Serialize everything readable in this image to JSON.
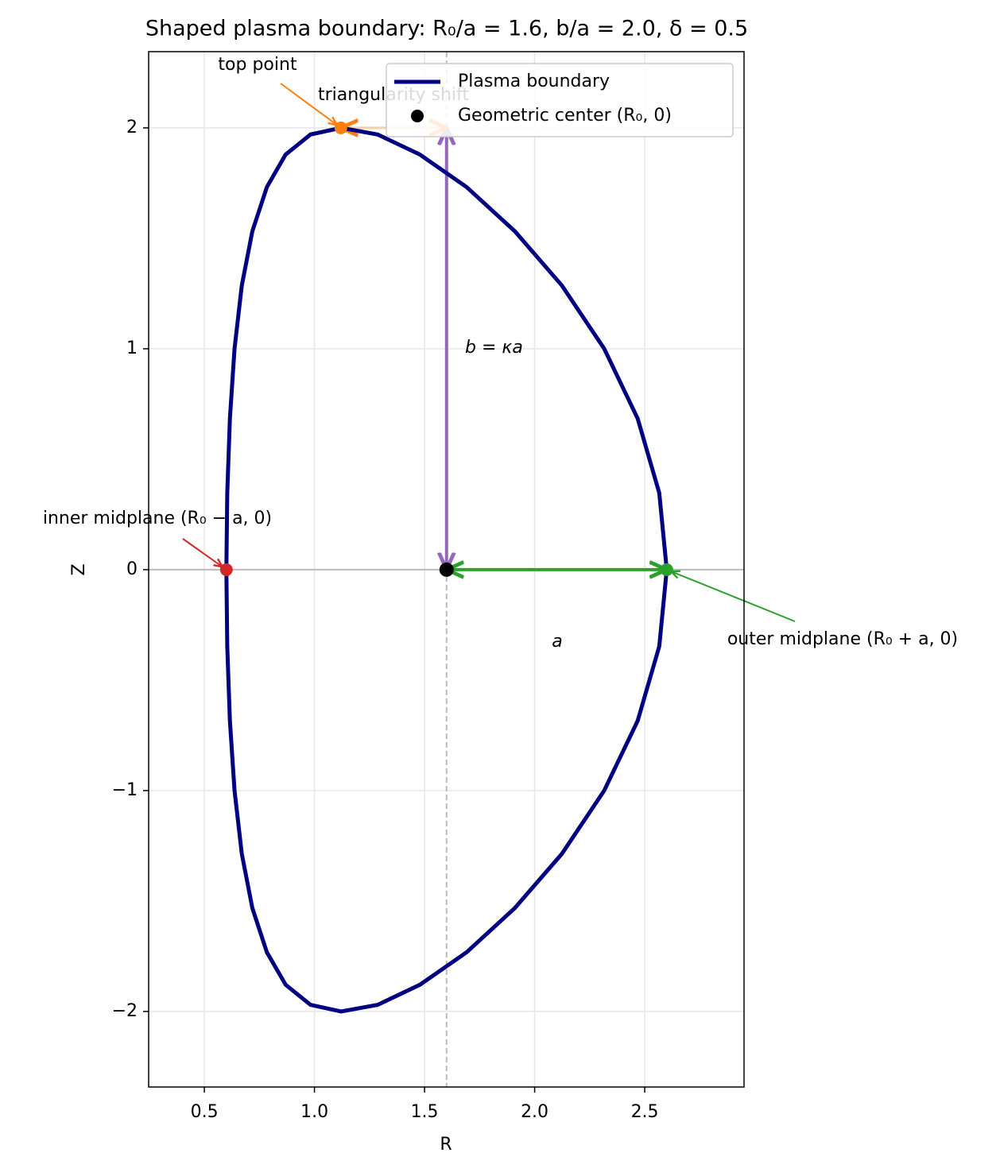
{
  "chart_data": {
    "type": "line",
    "title": "Shaped plasma boundary: R₀/a = 1.6, b/a = 2.0, δ = 0.5",
    "xlabel": "R",
    "ylabel": "Z",
    "xlim": [
      0.247,
      2.951
    ],
    "ylim": [
      -2.342,
      2.345
    ],
    "xticks": [
      0.5,
      {
        "value": 1.0,
        "label": "1.0"
      },
      1.5,
      {
        "value": 2.0,
        "label": "2.0"
      },
      2.5
    ],
    "yticks": [
      {
        "value": -2,
        "label": "−2"
      },
      {
        "value": -1,
        "label": "−1"
      },
      0,
      1,
      2
    ],
    "grid": true,
    "legend": "upper right",
    "series": [
      {
        "name": "Plasma boundary",
        "type": "line",
        "color": "#000080",
        "x": [
          2.6,
          2.566,
          2.468,
          2.316,
          2.124,
          1.91,
          1.691,
          1.479,
          1.287,
          1.121,
          0.982,
          0.869,
          0.784,
          0.718,
          0.67,
          0.637,
          0.616,
          0.604,
          0.6,
          0.604,
          0.616,
          0.637,
          0.67,
          0.718,
          0.784,
          0.869,
          0.982,
          1.121,
          1.287,
          1.479,
          1.691,
          1.91,
          2.124,
          2.316,
          2.468,
          2.566,
          2.6
        ],
        "y": [
          0,
          0.347,
          0.684,
          1.0,
          1.286,
          1.532,
          1.732,
          1.879,
          1.97,
          2.0,
          1.97,
          1.879,
          1.732,
          1.532,
          1.286,
          1.0,
          0.684,
          0.347,
          0,
          -0.347,
          -0.684,
          -1.0,
          -1.286,
          -1.532,
          -1.732,
          -1.879,
          -1.97,
          -2.0,
          -1.97,
          -1.879,
          -1.732,
          -1.532,
          -1.286,
          -1.0,
          -0.684,
          -0.347,
          0
        ]
      },
      {
        "name": "Geometric center (R₀, 0)",
        "type": "scatter",
        "color": "#000000",
        "x": [
          1.6
        ],
        "y": [
          0
        ]
      }
    ],
    "points": [
      {
        "text": "inner midplane (R₀ − a, 0)",
        "color": "#d62728",
        "x": 0.6,
        "y": 0
      },
      {
        "text": "outer midplane (R₀ + a, 0)",
        "color": "#2ca02c",
        "x": 2.6,
        "y": 0
      },
      {
        "text": "top point",
        "color": "#ff7f0e",
        "x": 1.12,
        "y": 2
      }
    ],
    "arrows": [
      {
        "text": "a",
        "color": "#2ca02c",
        "x": [
          1.6,
          2.6
        ],
        "y": [
          0,
          0
        ]
      },
      {
        "text": "b = κa",
        "color": "#9467bd",
        "x": [
          1.6,
          1.6
        ],
        "y": [
          0,
          2
        ]
      },
      {
        "text": "triangularity shift",
        "color": "#ff7f0e",
        "x": [
          1.12,
          1.6
        ],
        "y": [
          2,
          2
        ]
      }
    ]
  }
}
